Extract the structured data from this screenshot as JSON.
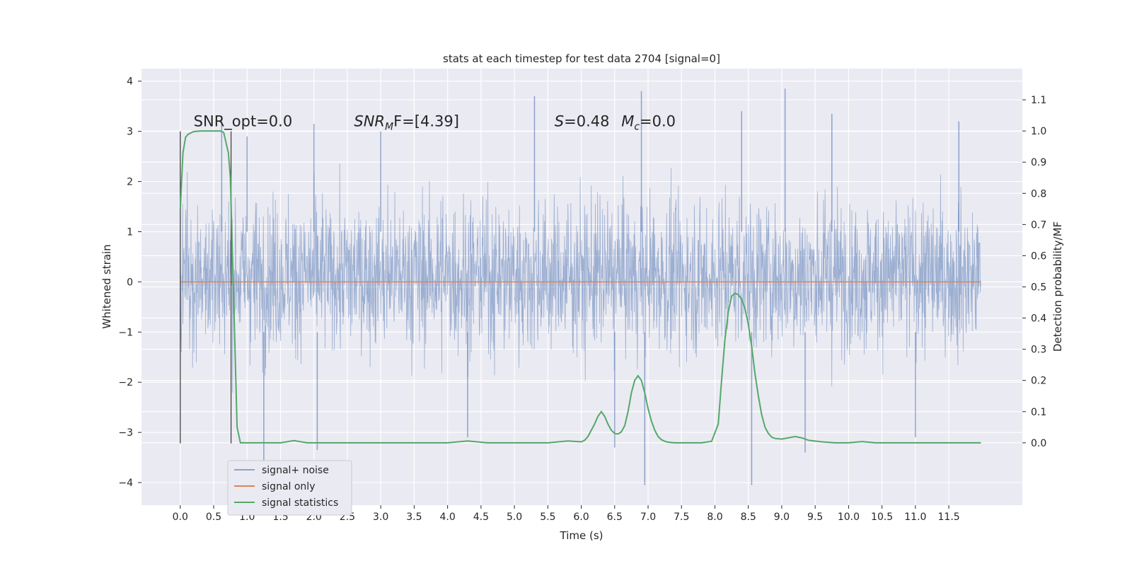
{
  "chart_data": {
    "type": "line",
    "title": "stats at each timestep for test data 2704 [signal=0]",
    "xlabel": "Time (s)",
    "ylabel": "Whitened strain",
    "y2label": "Detection probability/MF",
    "xlim": [
      -0.58,
      12.6
    ],
    "ylim": [
      -4.45,
      4.25
    ],
    "y2lim": [
      -0.2,
      1.2
    ],
    "x_ticks": [
      0.0,
      0.5,
      1.0,
      1.5,
      2.0,
      2.5,
      3.0,
      3.5,
      4.0,
      4.5,
      5.0,
      5.5,
      6.0,
      6.5,
      7.0,
      7.5,
      8.0,
      8.5,
      9.0,
      9.5,
      10.0,
      10.5,
      11.0,
      11.5
    ],
    "x_tick_labels": [
      "0.0",
      "0.5",
      "1.0",
      "1.5",
      "2.0",
      "2.5",
      "3.0",
      "3.5",
      "4.0",
      "4.5",
      "5.0",
      "5.5",
      "6.0",
      "6.5",
      "7.0",
      "7.5",
      "8.0",
      "8.5",
      "9.0",
      "9.5",
      "10.0",
      "10.5",
      "11.0",
      "11.5"
    ],
    "y_ticks": [
      -4,
      -3,
      -2,
      -1,
      0,
      1,
      2,
      3,
      4
    ],
    "y_tick_labels": [
      "−4",
      "−3",
      "−2",
      "−1",
      "0",
      "1",
      "2",
      "3",
      "4"
    ],
    "y2_ticks": [
      0.0,
      0.1,
      0.2,
      0.3,
      0.4,
      0.5,
      0.6,
      0.7,
      0.8,
      0.9,
      1.0,
      1.1
    ],
    "y2_tick_labels": [
      "0.0",
      "0.1",
      "0.2",
      "0.3",
      "0.4",
      "0.5",
      "0.6",
      "0.7",
      "0.8",
      "0.9",
      "1.0",
      "1.1"
    ],
    "grid": true,
    "legend_position": "lower-left",
    "series": [
      {
        "name": "signal+ noise",
        "axis": "left",
        "color": "#4c72b0",
        "note_visible_envelope": "noise band roughly between -2.5 and 3 with spikes",
        "peaks": [
          {
            "x": 0.62,
            "y": 3.3
          },
          {
            "x": 1.0,
            "y": 2.9
          },
          {
            "x": 2.0,
            "y": 3.15
          },
          {
            "x": 3.0,
            "y": 3.0
          },
          {
            "x": 5.3,
            "y": 3.7
          },
          {
            "x": 6.9,
            "y": 3.8
          },
          {
            "x": 8.4,
            "y": 3.4
          },
          {
            "x": 9.05,
            "y": 3.85
          },
          {
            "x": 9.75,
            "y": 3.35
          },
          {
            "x": 11.65,
            "y": 3.2
          }
        ],
        "troughs": [
          {
            "x": 1.25,
            "y": -3.6
          },
          {
            "x": 2.05,
            "y": -3.35
          },
          {
            "x": 4.3,
            "y": -3.1
          },
          {
            "x": 6.5,
            "y": -3.3
          },
          {
            "x": 6.95,
            "y": -4.05
          },
          {
            "x": 8.55,
            "y": -4.05
          },
          {
            "x": 9.35,
            "y": -3.4
          },
          {
            "x": 11.0,
            "y": -3.1
          }
        ]
      },
      {
        "name": "signal only",
        "axis": "left",
        "color": "#dd8452",
        "x": [
          0.0,
          11.98
        ],
        "y": [
          0.0,
          0.0
        ]
      },
      {
        "name": "signal statistics",
        "axis": "right",
        "color": "#55a868",
        "x": [
          0.0,
          0.04,
          0.08,
          0.12,
          0.2,
          0.3,
          0.4,
          0.5,
          0.55,
          0.6,
          0.65,
          0.72,
          0.75,
          0.8,
          0.85,
          0.9,
          1.0,
          1.5,
          1.7,
          1.9,
          2.5,
          3.5,
          4.0,
          4.3,
          4.6,
          5.0,
          5.5,
          5.8,
          6.0,
          6.05,
          6.1,
          6.2,
          6.25,
          6.3,
          6.35,
          6.4,
          6.45,
          6.5,
          6.55,
          6.6,
          6.65,
          6.7,
          6.75,
          6.8,
          6.85,
          6.9,
          6.95,
          7.0,
          7.05,
          7.1,
          7.15,
          7.2,
          7.25,
          7.3,
          7.4,
          7.6,
          7.8,
          7.95,
          8.05,
          8.1,
          8.15,
          8.2,
          8.25,
          8.3,
          8.35,
          8.4,
          8.45,
          8.5,
          8.55,
          8.6,
          8.65,
          8.7,
          8.75,
          8.8,
          8.85,
          8.9,
          9.0,
          9.1,
          9.2,
          9.3,
          9.4,
          9.6,
          9.8,
          10.0,
          10.2,
          10.4,
          11.0,
          11.98
        ],
        "y": [
          0.75,
          0.93,
          0.98,
          0.99,
          0.998,
          1.0,
          1.0,
          1.0,
          1.0,
          1.0,
          0.995,
          0.93,
          0.85,
          0.45,
          0.05,
          0.0,
          0.0,
          0.0,
          0.007,
          0.0,
          0.0,
          0.0,
          0.0,
          0.006,
          0.0,
          0.0,
          0.0,
          0.006,
          0.003,
          0.008,
          0.02,
          0.06,
          0.085,
          0.1,
          0.085,
          0.06,
          0.04,
          0.03,
          0.028,
          0.035,
          0.055,
          0.1,
          0.16,
          0.2,
          0.215,
          0.2,
          0.16,
          0.11,
          0.07,
          0.04,
          0.02,
          0.01,
          0.005,
          0.002,
          0.0,
          0.0,
          0.0,
          0.005,
          0.06,
          0.2,
          0.33,
          0.42,
          0.47,
          0.48,
          0.475,
          0.46,
          0.43,
          0.38,
          0.31,
          0.22,
          0.15,
          0.09,
          0.05,
          0.03,
          0.018,
          0.014,
          0.012,
          0.016,
          0.02,
          0.016,
          0.008,
          0.003,
          0.0,
          0.0,
          0.004,
          0.0,
          0.0,
          0.0
        ]
      }
    ],
    "vertical_markers": [
      {
        "x": 0.0,
        "y_from": -3.22,
        "y_to": 3.0
      },
      {
        "x": 0.76,
        "y_from": -3.22,
        "y_to": 3.0
      }
    ],
    "annotations": [
      {
        "text": "SNR_opt=0.0",
        "x": 0.2,
        "y": 3.1
      },
      {
        "prefix": "SNR",
        "sub": "M",
        "suffix": "F=[4.39]",
        "x": 2.6,
        "y": 3.1
      },
      {
        "prefix": "S",
        "suffix": "=0.48",
        "x": 5.6,
        "y": 3.1
      },
      {
        "prefix": "M",
        "sub": "c",
        "suffix": "=0.0",
        "x": 6.6,
        "y": 3.1
      }
    ]
  }
}
